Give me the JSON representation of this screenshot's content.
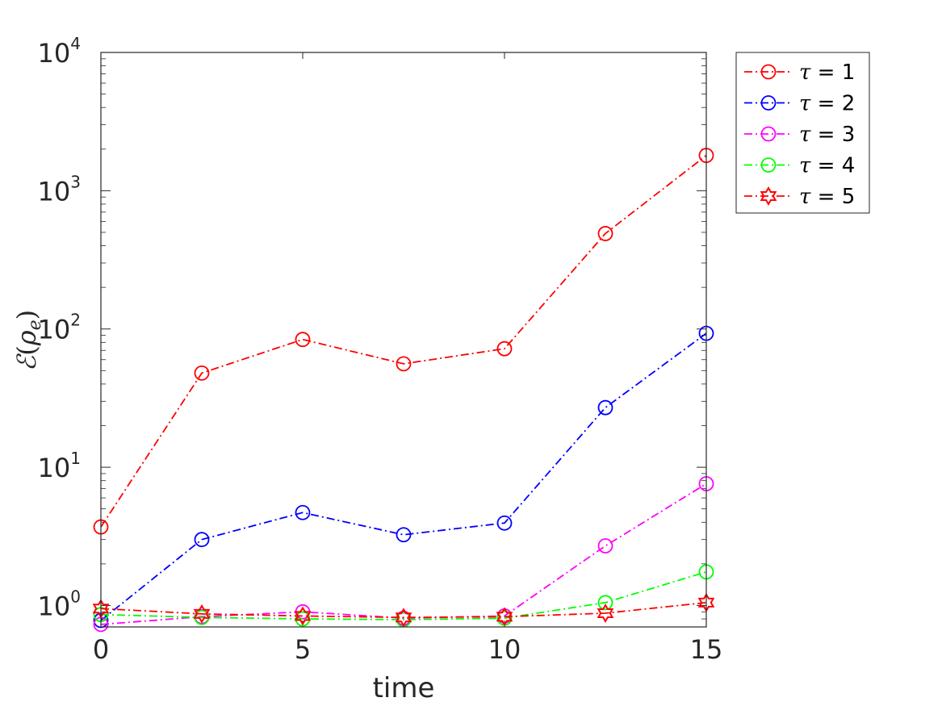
{
  "chart_data": {
    "type": "line",
    "title": "",
    "xlabel": "time",
    "ylabel": "ℰ(ρe)",
    "ylabel_symbol": "ℰ",
    "ylabel_arg": "ρ",
    "ylabel_sub": "e",
    "xlim": [
      0,
      15
    ],
    "ylim": [
      0.7,
      10000
    ],
    "yscale": "log",
    "grid": false,
    "legend_position": "outside-top-right",
    "xticks": [
      0,
      5,
      10,
      15
    ],
    "xtick_labels": [
      "0",
      "5",
      "10",
      "15"
    ],
    "yticks": [
      1,
      10,
      100,
      1000,
      10000
    ],
    "ytick_labels": [
      {
        "base": "10",
        "exp": "0"
      },
      {
        "base": "10",
        "exp": "1"
      },
      {
        "base": "10",
        "exp": "2"
      },
      {
        "base": "10",
        "exp": "3"
      },
      {
        "base": "10",
        "exp": "4"
      }
    ],
    "x": [
      0,
      2.5,
      5,
      7.5,
      10,
      12.5,
      15
    ],
    "series": [
      {
        "name": "τ = 1",
        "symbol": "τ",
        "rest": " = 1",
        "color": "#ff0000",
        "marker": "circle",
        "values": [
          3.7,
          48,
          84,
          56,
          72,
          490,
          1800
        ]
      },
      {
        "name": "τ = 2",
        "symbol": "τ",
        "rest": " = 2",
        "color": "#0000ff",
        "marker": "circle",
        "values": [
          0.78,
          3.0,
          4.7,
          3.25,
          3.95,
          27,
          93
        ]
      },
      {
        "name": "τ = 3",
        "symbol": "τ",
        "rest": " = 3",
        "color": "#ff00ff",
        "marker": "circle",
        "values": [
          0.73,
          0.83,
          0.9,
          0.81,
          0.84,
          2.7,
          7.6
        ]
      },
      {
        "name": "τ = 4",
        "symbol": "τ",
        "rest": " = 4",
        "color": "#00ff00",
        "marker": "circle",
        "values": [
          0.86,
          0.82,
          0.8,
          0.79,
          0.81,
          1.05,
          1.75
        ]
      },
      {
        "name": "τ = 5",
        "symbol": "τ",
        "rest": " = 5",
        "color": "#ff0000",
        "marker": "hexagram",
        "values": [
          0.95,
          0.87,
          0.84,
          0.82,
          0.83,
          0.88,
          1.05
        ]
      }
    ]
  }
}
